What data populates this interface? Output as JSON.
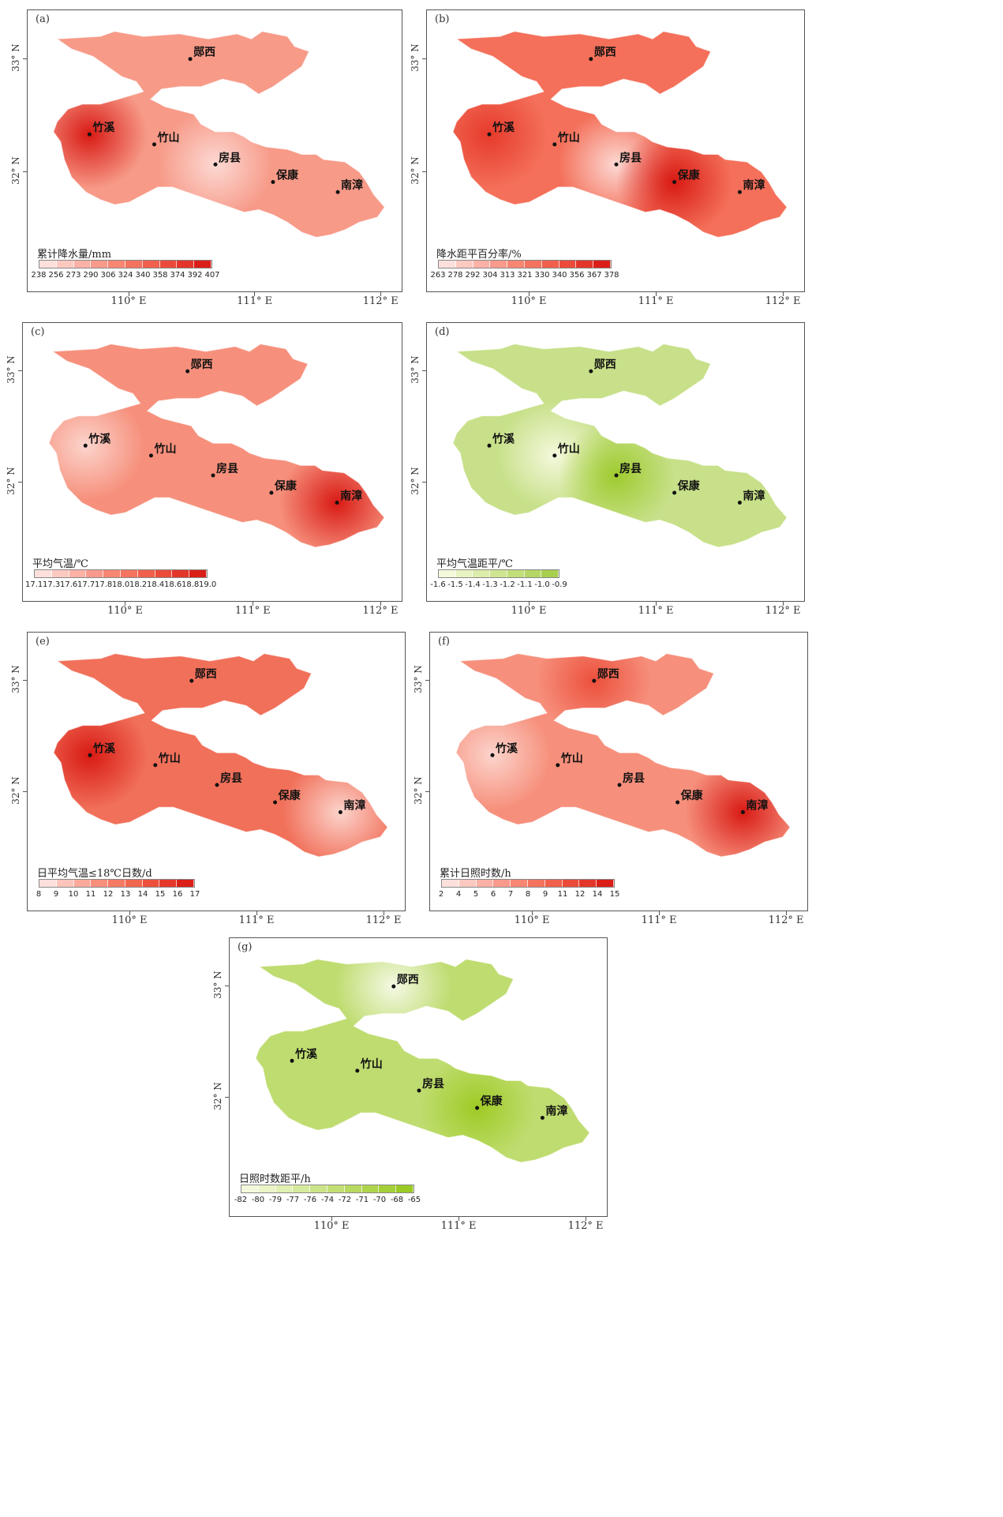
{
  "stations": {
    "yunxi": "郧西",
    "zhuxi": "竹溪",
    "zhushan": "竹山",
    "fangxian": "房县",
    "baokang": "保康",
    "nanzhang": "南漳"
  },
  "axes": {
    "lat_33": "33° N",
    "lat_32": "32° N",
    "lon_110": "110° E",
    "lon_111": "111° E",
    "lon_112": "112° E"
  },
  "panels": [
    {
      "id": "a",
      "label": "(a)",
      "legend_title": "累计降水量/mm",
      "ticks": [
        "238",
        "256",
        "273",
        "290",
        "306",
        "324",
        "340",
        "358",
        "374",
        "392",
        "407"
      ],
      "colors": [
        "#fde0dc",
        "#fcc9c1",
        "#fbb1a6",
        "#f99a8c",
        "#f78672",
        "#f4735f",
        "#f0604d",
        "#eb4b3b",
        "#e3362a",
        "#da1f18"
      ],
      "hot": {
        "zhuxi": "#d81a14",
        "fangxian": "#fcd9d3"
      },
      "base": "#f79a88"
    },
    {
      "id": "b",
      "label": "(b)",
      "legend_title": "降水距平百分率/%",
      "ticks": [
        "263",
        "278",
        "292",
        "304",
        "313",
        "321",
        "330",
        "340",
        "356",
        "367",
        "378"
      ],
      "colors": [
        "#fde0dc",
        "#fcc9c1",
        "#fbb1a6",
        "#f99a8c",
        "#f78672",
        "#f4735f",
        "#f0604d",
        "#eb4b3b",
        "#e3362a",
        "#da1f18"
      ],
      "hot": {
        "zhuxi": "#e63a2c",
        "fangxian": "#fcd9d3",
        "baokang": "#d81a14"
      },
      "base": "#f4705a"
    },
    {
      "id": "c",
      "label": "(c)",
      "legend_title": "平均气温/℃",
      "ticks": [
        "17.1",
        "17.3",
        "17.6",
        "17.7",
        "17.8",
        "18.0",
        "18.2",
        "18.4",
        "18.6",
        "18.8",
        "19.0"
      ],
      "colors": [
        "#fde0dc",
        "#fcc9c1",
        "#fbb1a6",
        "#f99a8c",
        "#f78672",
        "#f4735f",
        "#f0604d",
        "#eb4b3b",
        "#e3362a",
        "#da1f18"
      ],
      "hot": {
        "zhuxi": "#fcd4cc",
        "nanzhang": "#d81a14"
      },
      "base": "#f6907c"
    },
    {
      "id": "d",
      "label": "(d)",
      "legend_title": "平均气温距平/℃",
      "ticks": [
        "-1.6",
        "-1.5",
        "-1.4",
        "-1.3",
        "-1.2",
        "-1.1",
        "-1.0",
        "-0.9"
      ],
      "colors": [
        "#f4f9dc",
        "#e8f3c2",
        "#dcecaa",
        "#cfe592",
        "#c2de7b",
        "#b5d765",
        "#a8cf4e"
      ],
      "hot": {
        "zhushan": "#f4f9dc",
        "fangxian": "#9fcb2f"
      },
      "base": "#c7e089"
    },
    {
      "id": "e",
      "label": "(e)",
      "legend_title": "日平均气温≤18℃日数/d",
      "ticks": [
        "8",
        "9",
        "10",
        "11",
        "12",
        "13",
        "14",
        "15",
        "16",
        "17"
      ],
      "colors": [
        "#fde0dc",
        "#fcc4bb",
        "#faa99a",
        "#f88f7b",
        "#f57a64",
        "#f1664f",
        "#ec503c",
        "#e5382a",
        "#da1f18"
      ],
      "hot": {
        "zhuxi": "#d81a14",
        "nanzhang": "#fcd4cc"
      },
      "base": "#f1705a"
    },
    {
      "id": "f",
      "label": "(f)",
      "legend_title": "累计日照时数/h",
      "ticks": [
        "2",
        "4",
        "5",
        "6",
        "7",
        "8",
        "9",
        "11",
        "12",
        "14",
        "15"
      ],
      "colors": [
        "#fde0dc",
        "#fcc9c1",
        "#fbb1a6",
        "#f99a8c",
        "#f78672",
        "#f4735f",
        "#f0604d",
        "#eb4b3b",
        "#e3362a",
        "#da1f18"
      ],
      "hot": {
        "zhuxi": "#fcd4cc",
        "nanzhang": "#d81a14",
        "yunxi": "#ec503c"
      },
      "base": "#f6907c"
    },
    {
      "id": "g",
      "label": "(g)",
      "legend_title": "日照时数距平/h",
      "ticks": [
        "-82",
        "-80",
        "-79",
        "-77",
        "-76",
        "-74",
        "-72",
        "-71",
        "-70",
        "-68",
        "-65"
      ],
      "colors": [
        "#f4f9dc",
        "#eaf4c7",
        "#e0efb2",
        "#d6ea9d",
        "#cce488",
        "#c2df74",
        "#b8d960",
        "#aed44c",
        "#a4cf38",
        "#9aca25"
      ],
      "hot": {
        "yunxi": "#f4f9e4",
        "baokang": "#9fcb25"
      },
      "base": "#bfdc70"
    }
  ]
}
